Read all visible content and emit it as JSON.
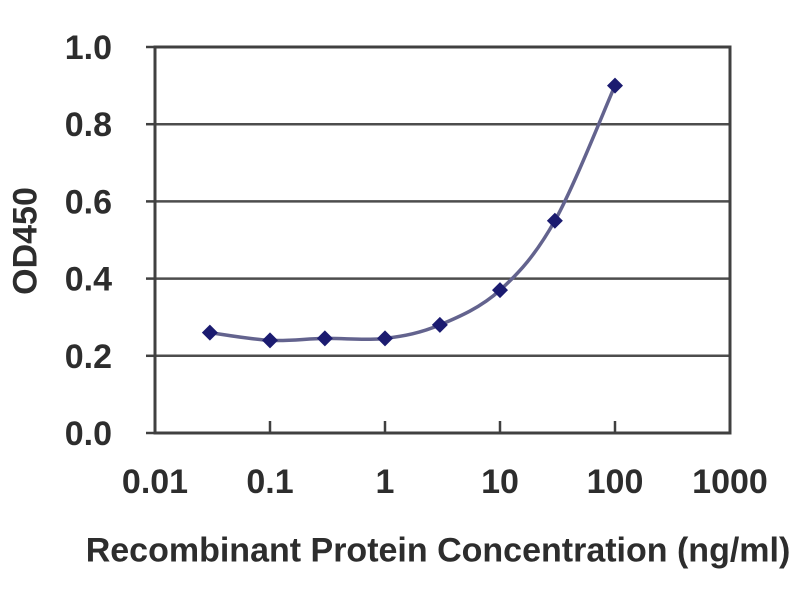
{
  "chart_data": {
    "type": "line",
    "title": "",
    "xlabel": "Recombinant Protein Concentration (ng/ml)",
    "ylabel": "OD450",
    "x_scale": "log",
    "xlim": [
      0.01,
      1000
    ],
    "ylim": [
      0.0,
      1.0
    ],
    "x_ticks": [
      0.01,
      0.1,
      1,
      10,
      100,
      1000
    ],
    "x_tick_labels": [
      "0.01",
      "0.1",
      "1",
      "10",
      "100",
      "1000"
    ],
    "y_ticks": [
      0.0,
      0.2,
      0.4,
      0.6,
      0.8,
      1.0
    ],
    "y_tick_labels": [
      "0.0",
      "0.2",
      "0.4",
      "0.6",
      "0.8",
      "1.0"
    ],
    "grid": "horizontal",
    "legend": "none",
    "series": [
      {
        "marker": "diamond",
        "x": [
          0.03,
          0.1,
          0.3,
          1,
          3,
          10,
          30,
          100
        ],
        "y": [
          0.26,
          0.24,
          0.245,
          0.245,
          0.28,
          0.37,
          0.55,
          0.9
        ]
      }
    ],
    "colors": {
      "line": "#63638e",
      "marker": "#1b1b70",
      "axis": "#404040",
      "grid": "#4d4d4d",
      "text": "#2d2d2d",
      "background": "#ffffff"
    }
  }
}
